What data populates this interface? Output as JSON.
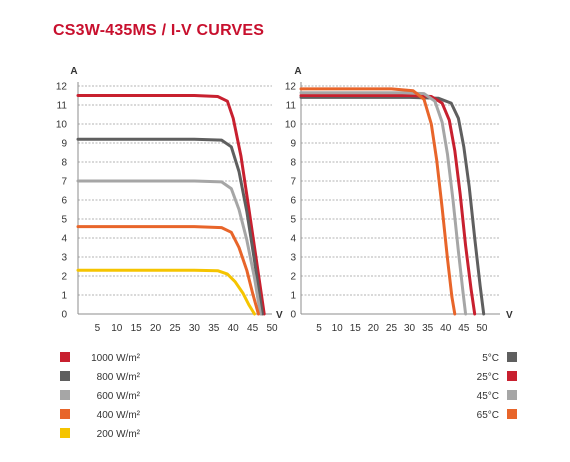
{
  "title": "CS3W-435MS / I-V CURVES",
  "chart_data": [
    {
      "type": "line",
      "title": "",
      "xlabel": "V",
      "ylabel": "A",
      "xlim": [
        0,
        50
      ],
      "ylim": [
        0,
        12
      ],
      "x_ticks": [
        "0",
        "5",
        "10",
        "15",
        "20",
        "25",
        "30",
        "35",
        "40",
        "45",
        "50"
      ],
      "y_ticks": [
        "0",
        "1",
        "2",
        "3",
        "4",
        "5",
        "6",
        "7",
        "8",
        "9",
        "10",
        "11",
        "12"
      ],
      "grid": true,
      "legend_position": "bottom-left",
      "series": [
        {
          "name": "1000 W/m²",
          "color": "#c8202f",
          "points": [
            [
              0,
              11.5
            ],
            [
              30,
              11.5
            ],
            [
              36,
              11.45
            ],
            [
              38.5,
              11.2
            ],
            [
              40,
              10.3
            ],
            [
              42,
              8.3
            ],
            [
              44,
              5.6
            ],
            [
              46,
              2.8
            ],
            [
              48,
              0
            ]
          ]
        },
        {
          "name": "800 W/m²",
          "color": "#5f5f5f",
          "points": [
            [
              0,
              9.2
            ],
            [
              30,
              9.2
            ],
            [
              37,
              9.15
            ],
            [
              39.5,
              8.8
            ],
            [
              41.5,
              7.5
            ],
            [
              43.5,
              5.4
            ],
            [
              45.5,
              2.8
            ],
            [
              47.5,
              0
            ]
          ]
        },
        {
          "name": "600 W/m²",
          "color": "#a6a6a6",
          "points": [
            [
              0,
              7.0
            ],
            [
              30,
              7.0
            ],
            [
              37,
              6.95
            ],
            [
              39.5,
              6.6
            ],
            [
              41.5,
              5.5
            ],
            [
              43.5,
              3.9
            ],
            [
              45.5,
              1.9
            ],
            [
              47,
              0
            ]
          ]
        },
        {
          "name": "400 W/m²",
          "color": "#e8652a",
          "points": [
            [
              0,
              4.6
            ],
            [
              30,
              4.6
            ],
            [
              37,
              4.55
            ],
            [
              39.5,
              4.3
            ],
            [
              41.5,
              3.5
            ],
            [
              43.5,
              2.3
            ],
            [
              45,
              1.1
            ],
            [
              46.5,
              0
            ]
          ]
        },
        {
          "name": "200 W/m²",
          "color": "#f5c400",
          "points": [
            [
              0,
              2.3
            ],
            [
              30,
              2.3
            ],
            [
              36,
              2.28
            ],
            [
              38.5,
              2.1
            ],
            [
              40.5,
              1.7
            ],
            [
              42.5,
              1.1
            ],
            [
              44,
              0.5
            ],
            [
              45.5,
              0
            ]
          ]
        }
      ]
    },
    {
      "type": "line",
      "title": "",
      "xlabel": "V",
      "ylabel": "A",
      "xlim": [
        0,
        55
      ],
      "ylim": [
        0,
        12
      ],
      "x_ticks": [
        "0",
        "5",
        "10",
        "15",
        "20",
        "25",
        "30",
        "35",
        "40",
        "45",
        "50"
      ],
      "y_ticks": [
        "0",
        "1",
        "2",
        "3",
        "4",
        "5",
        "6",
        "7",
        "8",
        "9",
        "10",
        "11",
        "12"
      ],
      "grid": true,
      "legend_position": "bottom-right",
      "series": [
        {
          "name": "5°C",
          "color": "#5f5f5f",
          "points": [
            [
              0,
              11.4
            ],
            [
              30,
              11.4
            ],
            [
              38,
              11.35
            ],
            [
              41.5,
              11.1
            ],
            [
              43.5,
              10.3
            ],
            [
              45,
              8.8
            ],
            [
              46.5,
              6.7
            ],
            [
              48,
              4.0
            ],
            [
              49.5,
              1.5
            ],
            [
              50.5,
              0
            ]
          ]
        },
        {
          "name": "25°C",
          "color": "#c8202f",
          "points": [
            [
              0,
              11.5
            ],
            [
              30,
              11.5
            ],
            [
              36,
              11.45
            ],
            [
              39,
              11.1
            ],
            [
              41,
              10.2
            ],
            [
              42.5,
              8.6
            ],
            [
              44,
              6.3
            ],
            [
              45.5,
              3.6
            ],
            [
              47,
              1.3
            ],
            [
              48,
              0
            ]
          ]
        },
        {
          "name": "45°C",
          "color": "#a6a6a6",
          "points": [
            [
              0,
              11.65
            ],
            [
              28,
              11.65
            ],
            [
              34,
              11.6
            ],
            [
              37,
              11.2
            ],
            [
              39,
              10.1
            ],
            [
              40.5,
              8.4
            ],
            [
              42,
              6.0
            ],
            [
              43.5,
              3.3
            ],
            [
              44.8,
              1.1
            ],
            [
              45.5,
              0
            ]
          ]
        },
        {
          "name": "65°C",
          "color": "#e8652a",
          "points": [
            [
              0,
              11.85
            ],
            [
              25,
              11.85
            ],
            [
              31,
              11.75
            ],
            [
              34,
              11.3
            ],
            [
              36,
              10.0
            ],
            [
              37.5,
              8.1
            ],
            [
              39,
              5.6
            ],
            [
              40.5,
              2.9
            ],
            [
              41.7,
              0.9
            ],
            [
              42.5,
              0
            ]
          ]
        }
      ]
    }
  ]
}
